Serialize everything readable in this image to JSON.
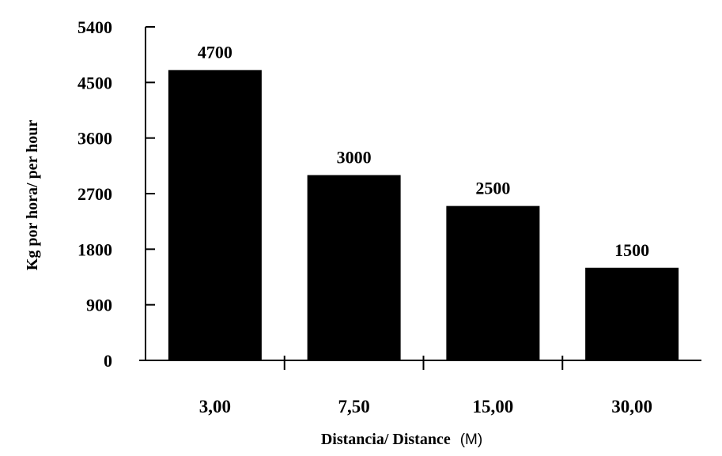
{
  "chart_data": {
    "type": "bar",
    "categories": [
      "3,00",
      "7,50",
      "15,00",
      "30,00"
    ],
    "values": [
      4700,
      3000,
      2500,
      1500
    ],
    "data_labels": [
      "4700",
      "3000",
      "2500",
      "1500"
    ],
    "title": "",
    "xlabel": "Distancia/ Distance",
    "xlabel_unit": "(M)",
    "ylabel": "Kg por hora/ per hour",
    "ylim": [
      0,
      5400
    ],
    "yticks": [
      0,
      900,
      1800,
      2700,
      3600,
      4500,
      5400
    ],
    "ytick_labels": [
      "0",
      "900",
      "1800",
      "2700",
      "3600",
      "4500",
      "5400"
    ],
    "grid": false,
    "legend": "none",
    "bar_color": "#000000"
  }
}
